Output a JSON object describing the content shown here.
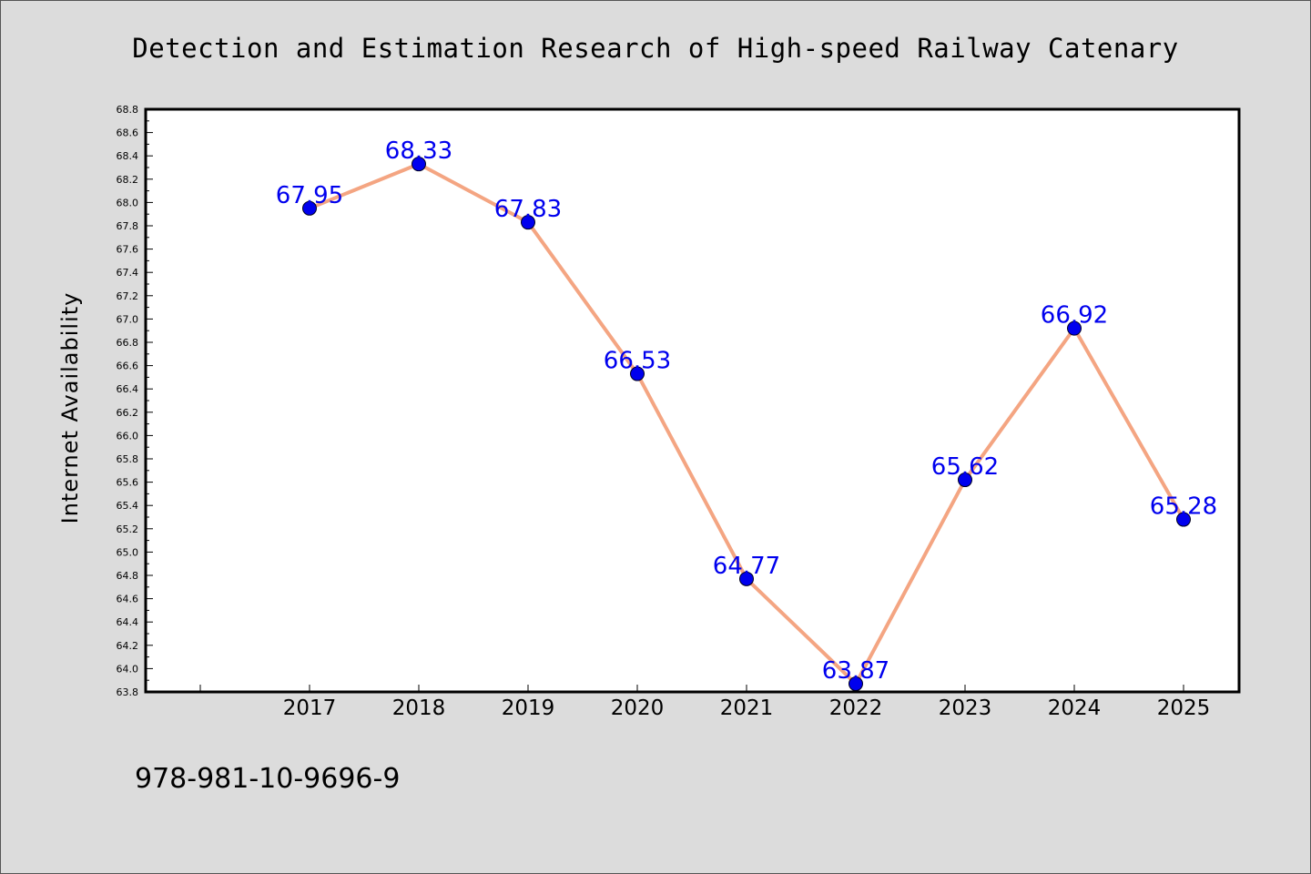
{
  "chart_data": {
    "type": "line",
    "title": "Detection and Estimation Research of High-speed Railway Catenary",
    "xlabel": "",
    "ylabel": "Internet Availability",
    "categories": [
      "2017",
      "2018",
      "2019",
      "2020",
      "2021",
      "2022",
      "2023",
      "2024",
      "2025"
    ],
    "series": [
      {
        "values": [
          67.95,
          68.33,
          67.83,
          66.53,
          64.77,
          63.87,
          65.62,
          66.92,
          65.28
        ],
        "labels": [
          "67.95",
          "68.33",
          "67.83",
          "66.53",
          "64.77",
          "63.87",
          "65.62",
          "66.92",
          "65.28"
        ]
      }
    ],
    "ylim": [
      63.8,
      68.8
    ],
    "yticks": [
      "63.8",
      "64.0",
      "64.2",
      "64.4",
      "64.6",
      "64.8",
      "65.0",
      "65.2",
      "65.4",
      "65.6",
      "65.8",
      "66.0",
      "66.2",
      "66.4",
      "66.6",
      "66.8",
      "67.0",
      "67.2",
      "67.4",
      "67.6",
      "67.8",
      "68.0",
      "68.2",
      "68.4",
      "68.6",
      "68.8"
    ],
    "grid": false,
    "legend": "none",
    "colors": {
      "line": "#f4a582",
      "marker": "#0000ee",
      "label": "#0000ee",
      "background": "#dcdcdc",
      "plot_background": "#ffffff"
    }
  },
  "footer": {
    "text": "978-981-10-9696-9"
  }
}
